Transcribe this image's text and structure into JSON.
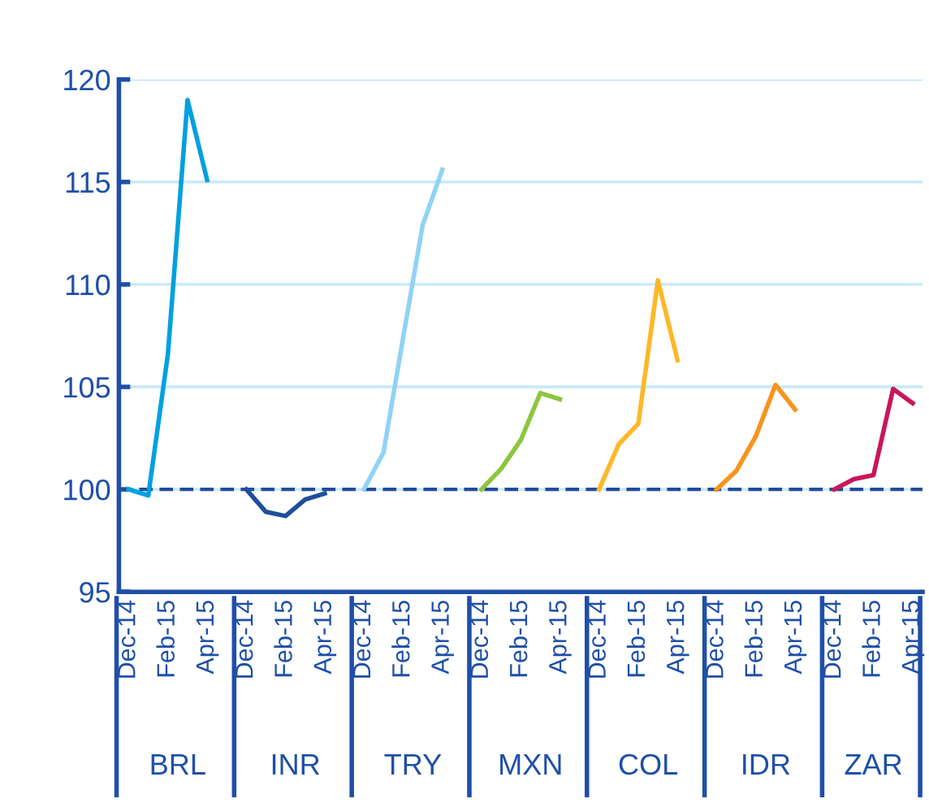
{
  "chart_data": {
    "type": "line",
    "categories": [
      "Dec-14",
      null,
      "Feb-15",
      null,
      "Apr-15",
      null,
      "Dec-14",
      null,
      "Feb-15",
      null,
      "Apr-15",
      null,
      "Dec-14",
      null,
      "Feb-15",
      null,
      "Apr-15",
      null,
      "Dec-14",
      null,
      "Feb-15",
      null,
      "Apr-15",
      null,
      "Dec-14",
      null,
      "Feb-15",
      null,
      "Apr-15",
      null,
      "Dec-14",
      null,
      "Feb-15",
      null,
      "Apr-15",
      null,
      "Dec-14",
      null,
      "Feb-15",
      null,
      "Apr-15"
    ],
    "series": [
      {
        "color": "#00a0e0",
        "values": [
          100,
          99.7,
          106.6,
          119.0,
          115.1,
          null,
          null,
          null,
          null,
          null,
          null,
          null,
          null,
          null,
          null,
          null,
          null,
          null,
          null,
          null,
          null,
          null,
          null,
          null,
          null,
          null,
          null,
          null,
          null,
          null,
          null,
          null,
          null,
          null,
          null,
          null,
          null,
          null,
          null,
          null,
          null
        ]
      },
      {
        "color": "#1f4e9c",
        "values": [
          null,
          null,
          null,
          null,
          null,
          null,
          100,
          98.9,
          98.7,
          99.5,
          99.8,
          null,
          null,
          null,
          null,
          null,
          null,
          null,
          null,
          null,
          null,
          null,
          null,
          null,
          null,
          null,
          null,
          null,
          null,
          null,
          null,
          null,
          null,
          null,
          null,
          null,
          null,
          null,
          null,
          null,
          null
        ]
      },
      {
        "color": "#8fd3f5",
        "values": [
          null,
          null,
          null,
          null,
          null,
          null,
          null,
          null,
          null,
          null,
          null,
          null,
          100,
          101.8,
          107.4,
          112.9,
          115.6,
          null,
          null,
          null,
          null,
          null,
          null,
          null,
          null,
          null,
          null,
          null,
          null,
          null,
          null,
          null,
          null,
          null,
          null,
          null,
          null,
          null,
          null,
          null,
          null
        ]
      },
      {
        "color": "#8dc63f",
        "values": [
          null,
          null,
          null,
          null,
          null,
          null,
          null,
          null,
          null,
          null,
          null,
          null,
          null,
          null,
          null,
          null,
          null,
          null,
          100,
          101.0,
          102.4,
          104.7,
          104.4,
          null,
          null,
          null,
          null,
          null,
          null,
          null,
          null,
          null,
          null,
          null,
          null,
          null,
          null,
          null,
          null,
          null,
          null
        ]
      },
      {
        "color": "#fdb827",
        "values": [
          null,
          null,
          null,
          null,
          null,
          null,
          null,
          null,
          null,
          null,
          null,
          null,
          null,
          null,
          null,
          null,
          null,
          null,
          null,
          null,
          null,
          null,
          null,
          null,
          100,
          102.2,
          103.2,
          110.2,
          106.3,
          null,
          null,
          null,
          null,
          null,
          null,
          null,
          null,
          null,
          null,
          null,
          null
        ]
      },
      {
        "color": "#f7941d",
        "values": [
          null,
          null,
          null,
          null,
          null,
          null,
          null,
          null,
          null,
          null,
          null,
          null,
          null,
          null,
          null,
          null,
          null,
          null,
          null,
          null,
          null,
          null,
          null,
          null,
          null,
          null,
          null,
          null,
          null,
          null,
          100,
          100.9,
          102.6,
          105.1,
          103.9,
          null,
          null,
          null,
          null,
          null,
          null
        ]
      },
      {
        "color": "#c8175d",
        "values": [
          null,
          null,
          null,
          null,
          null,
          null,
          null,
          null,
          null,
          null,
          null,
          null,
          null,
          null,
          null,
          null,
          null,
          null,
          null,
          null,
          null,
          null,
          null,
          null,
          null,
          null,
          null,
          null,
          null,
          null,
          null,
          null,
          null,
          null,
          null,
          null,
          100,
          100.5,
          100.7,
          104.9,
          104.2
        ]
      }
    ],
    "annotations": [
      "BRL",
      "INR",
      "TRY",
      "MXN",
      "COL",
      "IDR",
      "ZAR"
    ],
    "ylim": [
      95,
      120
    ],
    "yticks": [
      95,
      100,
      105,
      110,
      115,
      120
    ],
    "ref_lines": [
      {
        "axis": "y",
        "value": 100,
        "color": "#1f4e9c",
        "line_style": "dashed"
      }
    ],
    "grid": "y",
    "legend": false,
    "marker": "none",
    "line_style": "solid"
  }
}
